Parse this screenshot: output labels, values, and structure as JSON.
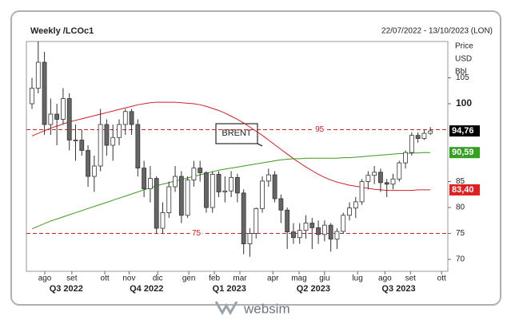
{
  "chart_data": {
    "type": "candlestick",
    "title": "Weekly /LCOc1",
    "date_range": "22/07/2022 - 13/10/2023 (LON)",
    "y_axis_label": [
      "Price",
      "USD",
      "Bbl"
    ],
    "annotation": "BRENT",
    "x": [
      0,
      1,
      2,
      3,
      4,
      5,
      6,
      7,
      8,
      9,
      10,
      11,
      12,
      13,
      14,
      15,
      16,
      17,
      18,
      19,
      20,
      21,
      22,
      23,
      24,
      25,
      26,
      27,
      28,
      29,
      30,
      31,
      32,
      33,
      34,
      35,
      36,
      37,
      38,
      39,
      40,
      41,
      42,
      43,
      44,
      45,
      46,
      47,
      48,
      49,
      50,
      51,
      52,
      53,
      54,
      55,
      56,
      57,
      58,
      59,
      60,
      61,
      62,
      63,
      64
    ],
    "open": [
      100,
      103,
      108,
      96,
      98,
      97,
      101,
      93,
      93,
      91,
      86,
      88,
      96,
      92,
      93.5,
      96,
      98.5,
      96,
      87.6,
      83.6,
      85.6,
      76,
      79,
      84,
      86,
      78.5,
      85.3,
      87.6,
      86.7,
      80,
      86.4,
      83,
      83.2,
      85.8,
      82.8,
      73,
      75,
      79.8,
      85.1,
      86.3,
      81.7,
      79.5,
      75.3,
      74.2,
      75.6,
      77,
      76.1,
      74.8,
      76.6,
      73.9,
      75.4,
      78.5,
      79.9,
      81.1,
      85,
      86.2,
      86.8,
      84.8,
      84.5,
      85.5,
      88.6,
      90.6,
      93.9,
      93.3,
      94.3
    ],
    "high": [
      105,
      112,
      110,
      101,
      100,
      103,
      102,
      96,
      95,
      92,
      90,
      99,
      97,
      96,
      97,
      99,
      99,
      97,
      89,
      88,
      86,
      81,
      85,
      88,
      87,
      86,
      89,
      89,
      87,
      87,
      87,
      86,
      87,
      86.5,
      83.5,
      76,
      80,
      86,
      87.5,
      87,
      82.5,
      80,
      77,
      77,
      78.5,
      78,
      77.5,
      77.5,
      77,
      76,
      79,
      81,
      82,
      85.5,
      87,
      88,
      87.5,
      85.5,
      86.5,
      89,
      91,
      94.5,
      94.5,
      95,
      95.5
    ],
    "low": [
      99,
      102,
      94,
      94,
      92,
      96,
      91,
      89,
      90,
      84,
      83,
      87,
      90,
      89,
      92,
      94,
      94,
      86,
      82,
      81,
      75,
      75,
      78,
      83,
      77,
      78,
      84,
      85,
      79,
      79,
      82,
      81,
      82,
      81,
      71,
      70.5,
      74,
      79,
      84,
      81,
      77,
      72,
      73,
      73,
      74,
      72,
      73,
      73.5,
      71.5,
      72,
      75,
      77.5,
      78,
      80.5,
      83.5,
      84.5,
      83,
      82,
      83.5,
      85,
      87.5,
      90,
      92.5,
      93,
      94
    ],
    "close": [
      103,
      108,
      96,
      98,
      97,
      101,
      93,
      93,
      91,
      86,
      88,
      96,
      92,
      93.5,
      96,
      98.5,
      96,
      87.6,
      83.6,
      85.6,
      76,
      79,
      84,
      86,
      78.5,
      85.3,
      87.6,
      86.7,
      80,
      86.4,
      83,
      83.2,
      85.8,
      82.8,
      73,
      75,
      79.8,
      85.1,
      86.3,
      81.7,
      79.5,
      75.3,
      74.2,
      75.6,
      77,
      76.1,
      74.8,
      76.6,
      73.9,
      75.4,
      78.5,
      79.9,
      81.1,
      85,
      86.2,
      86.8,
      84.8,
      84.5,
      85.5,
      88.6,
      90.6,
      93.9,
      93.3,
      94.3,
      94.76
    ],
    "up_color": "#ffffff",
    "down_color": "#666666",
    "series": [
      {
        "color": "#d42020",
        "values": [
          93.8,
          94.3,
          94.8,
          95.3,
          95.7,
          96.1,
          96.5,
          96.8,
          97.1,
          97.4,
          97.7,
          98.0,
          98.3,
          98.6,
          98.9,
          99.2,
          99.5,
          99.8,
          100.0,
          100.2,
          100.3,
          100.3,
          100.3,
          100.3,
          100.2,
          100.1,
          100.0,
          99.8,
          99.5,
          99.1,
          98.7,
          98.2,
          97.6,
          97.0,
          96.3,
          95.5,
          94.7,
          93.9,
          93.0,
          92.1,
          91.2,
          90.3,
          89.4,
          88.6,
          87.8,
          87.1,
          86.4,
          85.8,
          85.3,
          84.9,
          84.6,
          84.3,
          84.1,
          83.9,
          83.7,
          83.5,
          83.4,
          83.3,
          83.3,
          83.3,
          83.3,
          83.3,
          83.4,
          83.4,
          83.4
        ]
      },
      {
        "color": "#3c9a1c",
        "values": [
          75.9,
          76.4,
          76.9,
          77.4,
          77.8,
          78.2,
          78.6,
          79.0,
          79.4,
          79.8,
          80.2,
          80.6,
          81.0,
          81.4,
          81.8,
          82.2,
          82.6,
          83.0,
          83.4,
          83.8,
          84.2,
          84.5,
          84.8,
          85.1,
          85.4,
          85.7,
          86.0,
          86.3,
          86.6,
          86.9,
          87.2,
          87.4,
          87.6,
          87.8,
          88.0,
          88.2,
          88.4,
          88.6,
          88.8,
          89.0,
          89.2,
          89.3,
          89.4,
          89.4,
          89.5,
          89.5,
          89.5,
          89.5,
          89.5,
          89.5,
          89.6,
          89.6,
          89.7,
          89.8,
          89.9,
          90.0,
          90.1,
          90.2,
          90.3,
          90.4,
          90.4,
          90.5,
          90.5,
          90.6,
          90.59
        ]
      }
    ],
    "last_values": [
      {
        "value": 94.76,
        "label": "94,76",
        "color": "#000000"
      },
      {
        "value": 90.59,
        "label": "90,59",
        "color": "#33a020"
      },
      {
        "value": 83.4,
        "label": "83,40",
        "color": "#e02020"
      }
    ],
    "hlines": [
      {
        "value": 95,
        "label": "95",
        "color": "#d42020",
        "label_at": 46.2
      },
      {
        "value": 75,
        "label": "75",
        "color": "#d42020",
        "label_at": 26.4
      }
    ],
    "xlim": [
      -0.9,
      66.8
    ],
    "ylim": [
      67.7,
      112
    ],
    "yticks": [
      70,
      75,
      80,
      85,
      100,
      105
    ],
    "xticks": [
      {
        "value": 2.06,
        "label": "ago"
      },
      {
        "value": 6.4,
        "label": "set"
      },
      {
        "value": 11.7,
        "label": "ott"
      },
      {
        "value": 15.6,
        "label": "nov"
      },
      {
        "value": 20.2,
        "label": "dic"
      },
      {
        "value": 25.2,
        "label": "gen"
      },
      {
        "value": 29.3,
        "label": "feb"
      },
      {
        "value": 33.4,
        "label": "mar"
      },
      {
        "value": 38.7,
        "label": "apr"
      },
      {
        "value": 42.9,
        "label": "mag"
      },
      {
        "value": 47,
        "label": "giu"
      },
      {
        "value": 52.3,
        "label": "lug"
      },
      {
        "value": 56.7,
        "label": "ago"
      },
      {
        "value": 60.8,
        "label": "set"
      },
      {
        "value": 65.8,
        "label": "ott"
      }
    ],
    "quarters": [
      {
        "value": 5.5,
        "label": "Q3 2022"
      },
      {
        "value": 18.4,
        "label": "Q4 2022"
      },
      {
        "value": 31.7,
        "label": "Q1 2023"
      },
      {
        "value": 45.2,
        "label": "Q2 2023"
      },
      {
        "value": 58.9,
        "label": "Q3 2023"
      }
    ]
  },
  "brand": "websim"
}
